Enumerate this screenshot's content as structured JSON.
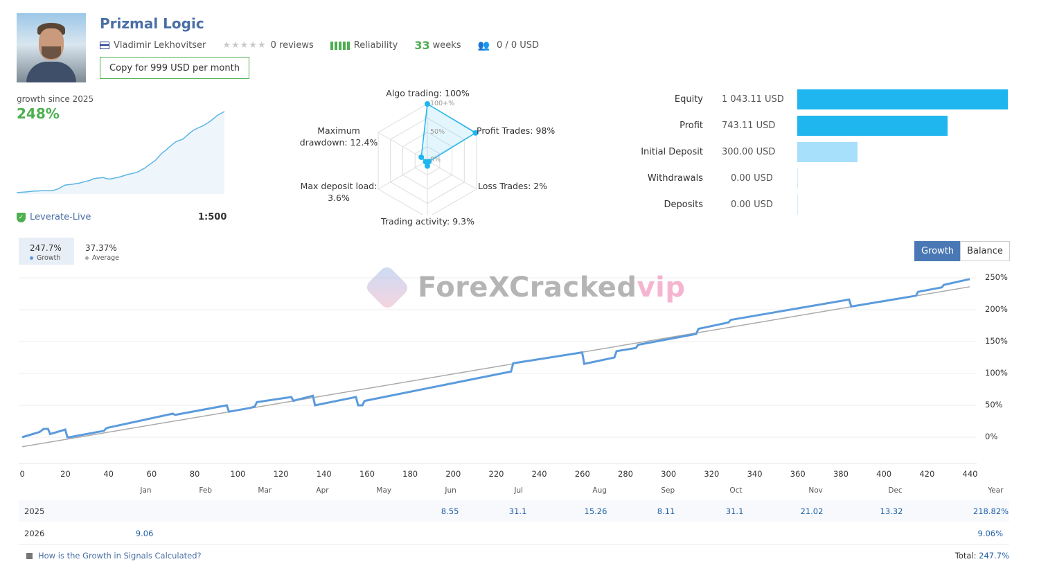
{
  "header": {
    "title": "Prizmal Logic",
    "author": "Vladimir Lekhovitser",
    "reviews": "0 reviews",
    "reliability_label": "Reliability",
    "weeks_value": "33",
    "weeks_label": "weeks",
    "subscribers": "0 / 0 USD",
    "copy_button": "Copy for 999 USD per month",
    "stars_filled": 0,
    "stars_total": 5
  },
  "summary": {
    "growth_label": "growth since 2025",
    "growth_value": "248%",
    "broker": "Leverate-Live",
    "leverage": "1:500"
  },
  "radar": {
    "algo": "Algo trading: 100%",
    "profit": "Profit Trades: 98%",
    "loss": "Loss Trades: 2%",
    "activity": "Trading activity: 9.3%",
    "deposit_load_1": "Max deposit load:",
    "deposit_load_2": "3.6%",
    "drawdown_1": "Maximum",
    "drawdown_2": "drawdown: 12.4%",
    "scale_100": "100+%",
    "scale_50": "50%",
    "scale_0": "0%",
    "values": [
      100,
      98,
      2,
      9.3,
      3.6,
      12.4
    ]
  },
  "financials": {
    "rows": [
      {
        "label": "Equity",
        "value": "1 043.11 USD",
        "amount": 1043.11
      },
      {
        "label": "Profit",
        "value": "743.11 USD",
        "amount": 743.11
      },
      {
        "label": "Initial Deposit",
        "value": "300.00 USD",
        "amount": 300.0
      },
      {
        "label": "Withdrawals",
        "value": "0.00 USD",
        "amount": 0
      },
      {
        "label": "Deposits",
        "value": "0.00 USD",
        "amount": 0
      }
    ],
    "colors": {
      "primary": "#1fb6ef",
      "light": "#a6e0fb",
      "empty": "#cdeefb"
    }
  },
  "tabs": {
    "growth_value": "247.7%",
    "growth_label": "Growth",
    "average_value": "37.37%",
    "average_label": "Average",
    "toggle_growth": "Growth",
    "toggle_balance": "Balance"
  },
  "chart_data": {
    "type": "line",
    "x_ticks": [
      "0",
      "20",
      "40",
      "60",
      "80",
      "100",
      "120",
      "140",
      "160",
      "180",
      "200",
      "220",
      "240",
      "260",
      "280",
      "300",
      "320",
      "340",
      "360",
      "380",
      "400",
      "420",
      "440"
    ],
    "y_ticks": [
      "0%",
      "50%",
      "100%",
      "150%",
      "200%",
      "250%"
    ],
    "months": [
      "Jan",
      "Feb",
      "Mar",
      "Apr",
      "May",
      "Jun",
      "Jul",
      "Aug",
      "Sep",
      "Oct",
      "Nov",
      "Dec",
      "Year"
    ],
    "xlim": [
      0,
      440
    ],
    "ylim": [
      -30,
      270
    ],
    "series": [
      {
        "name": "Growth",
        "color": "#5b9bdc",
        "x": [
          0,
          8,
          10,
          12,
          13,
          20,
          21,
          22,
          38,
          39,
          40,
          70,
          71,
          95,
          96,
          106,
          108,
          109,
          125,
          126,
          127,
          135,
          136,
          155,
          156,
          158,
          159,
          227,
          228,
          260,
          261,
          275,
          276,
          285,
          286,
          313,
          314,
          328,
          329,
          384,
          385,
          415,
          416,
          427,
          428,
          440
        ],
        "y": [
          0,
          8,
          13,
          13,
          5,
          12,
          0,
          0,
          10,
          14,
          15,
          37,
          35,
          50,
          40,
          46,
          48,
          55,
          63,
          57,
          58,
          65,
          50,
          63,
          50,
          50,
          57,
          103,
          116,
          133,
          115,
          125,
          135,
          140,
          145,
          162,
          170,
          180,
          184,
          216,
          205,
          222,
          228,
          235,
          239,
          248
        ]
      },
      {
        "name": "Average",
        "color": "#aaaaaa",
        "x": [
          0,
          440
        ],
        "y": [
          -15,
          236
        ]
      }
    ]
  },
  "mini_growth": {
    "x": [
      0,
      15,
      25,
      30,
      35,
      50,
      55,
      60,
      65,
      70,
      80,
      90,
      100,
      105,
      110,
      115,
      120,
      125,
      130,
      135,
      140,
      150,
      155,
      160,
      170,
      175,
      180,
      185,
      190,
      200,
      205,
      210,
      215,
      220,
      225,
      230,
      240,
      245,
      250,
      255,
      260,
      270,
      280,
      290,
      300
    ],
    "y": [
      0,
      2,
      4,
      4,
      5,
      5,
      7,
      10,
      15,
      20,
      22,
      25,
      30,
      32,
      36,
      38,
      39,
      40,
      37,
      36,
      38,
      42,
      45,
      48,
      52,
      55,
      60,
      65,
      72,
      85,
      95,
      105,
      112,
      120,
      128,
      135,
      142,
      150,
      158,
      165,
      170,
      178,
      190,
      205,
      215
    ]
  },
  "growth_table": {
    "rows": [
      {
        "year": "2025",
        "jan": "",
        "feb": "",
        "mar": "",
        "apr": "",
        "may": "",
        "jun": "8.55",
        "jul": "31.1",
        "aug": "15.26",
        "sep": "8.11",
        "oct": "31.1",
        "nov": "21.02",
        "dec": "13.32",
        "total": "218.82%"
      },
      {
        "year": "2026",
        "jan": "9.06",
        "feb": "",
        "mar": "",
        "apr": "",
        "may": "",
        "jun": "",
        "jul": "",
        "aug": "",
        "sep": "",
        "oct": "",
        "nov": "",
        "dec": "",
        "total": "9.06%"
      }
    ],
    "footer_link": "How is the Growth in Signals Calculated?",
    "total_label": "Total:",
    "total_value": "247.7%"
  },
  "watermark": {
    "text_main": "ForeXCracked",
    "text_vip": "vip"
  }
}
